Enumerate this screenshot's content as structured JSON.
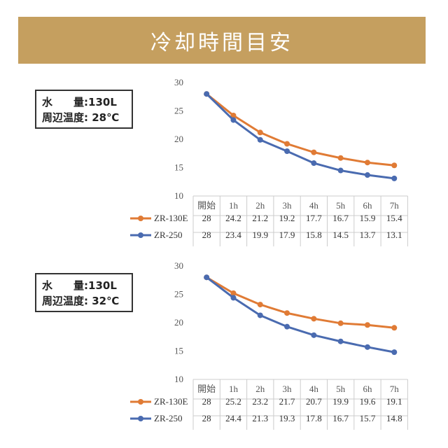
{
  "header": {
    "title": "冷却時間目安"
  },
  "panels": [
    {
      "condition": {
        "water_label": "水　　量",
        "water_value": ":130L",
        "temp_label": "周辺温度",
        "temp_value": ": 28℃"
      }
    },
    {
      "condition": {
        "water_label": "水　　量",
        "water_value": ":130L",
        "temp_label": "周辺温度",
        "temp_value": ": 32℃"
      }
    }
  ],
  "colors": {
    "ZR-130E": "#e07b35",
    "ZR-250": "#4a6bb0",
    "grid": "#cccccc",
    "banner": "#c59f5f"
  },
  "chart_data": [
    {
      "type": "line",
      "categories": [
        "開始",
        "1h",
        "2h",
        "3h",
        "4h",
        "5h",
        "6h",
        "7h"
      ],
      "yticks": [
        10,
        15,
        20,
        25,
        30
      ],
      "ylim": [
        10,
        30
      ],
      "series": [
        {
          "name": "ZR-130E",
          "values": [
            28,
            24.2,
            21.2,
            19.2,
            17.7,
            16.7,
            15.9,
            15.4
          ]
        },
        {
          "name": "ZR-250",
          "values": [
            28,
            23.4,
            19.9,
            17.9,
            15.8,
            14.5,
            13.7,
            13.1
          ]
        }
      ]
    },
    {
      "type": "line",
      "categories": [
        "開始",
        "1h",
        "2h",
        "3h",
        "4h",
        "5h",
        "6h",
        "7h"
      ],
      "yticks": [
        10,
        15,
        20,
        25,
        30
      ],
      "ylim": [
        10,
        30
      ],
      "series": [
        {
          "name": "ZR-130E",
          "values": [
            28,
            25.2,
            23.2,
            21.7,
            20.7,
            19.9,
            19.6,
            19.1
          ]
        },
        {
          "name": "ZR-250",
          "values": [
            28,
            24.4,
            21.3,
            19.3,
            17.8,
            16.7,
            15.7,
            14.8
          ]
        }
      ]
    }
  ]
}
